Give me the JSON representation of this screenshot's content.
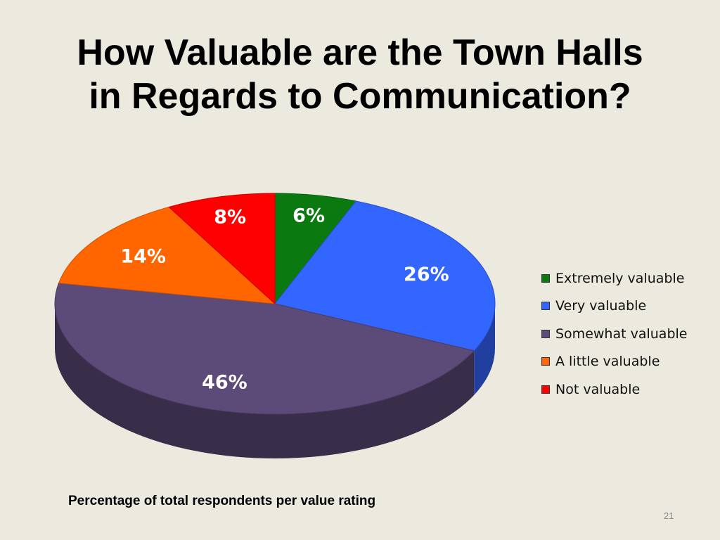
{
  "slide": {
    "title_line1": "How Valuable are the Town Halls",
    "title_line2": "in Regards to Communication?",
    "caption": "Percentage of total respondents per value rating",
    "page_number": "21"
  },
  "chart_data": {
    "type": "pie",
    "style": "3d",
    "title": "",
    "legend_position": "right",
    "categories": [
      "Extremely valuable",
      "Very valuable",
      "Somewhat valuable",
      "A little valuable",
      "Not valuable"
    ],
    "values": [
      6,
      26,
      46,
      14,
      8
    ],
    "data_labels": [
      "6%",
      "26%",
      "46%",
      "14%",
      "8%"
    ],
    "colors": [
      "#0a7a10",
      "#3366ff",
      "#5c4a78",
      "#ff6600",
      "#ff0000"
    ]
  }
}
